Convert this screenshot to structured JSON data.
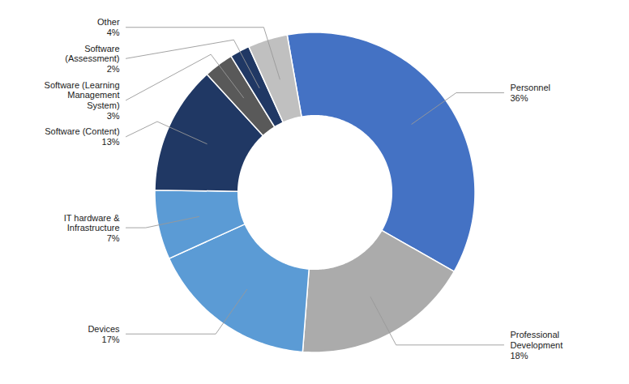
{
  "chart_data": {
    "type": "pie",
    "categories": [
      "Personnel",
      "Professional\nDevelopment",
      "Devices",
      "IT hardware &\nInfrastructure",
      "Software (Content)",
      "Software (Learning\nManagement\nSystem)",
      "Software\n(Assessment)",
      "Other"
    ],
    "values": [
      36,
      18,
      17,
      7,
      13,
      3,
      2,
      4
    ],
    "value_labels": [
      "36%",
      "18%",
      "17%",
      "7%",
      "13%",
      "3%",
      "2%",
      "4%"
    ],
    "colors": [
      "#4472C4",
      "#ABABAB",
      "#5B9BD5",
      "#5B9BD5",
      "#203864",
      "#595959",
      "#203864",
      "#C0C0C0"
    ]
  }
}
